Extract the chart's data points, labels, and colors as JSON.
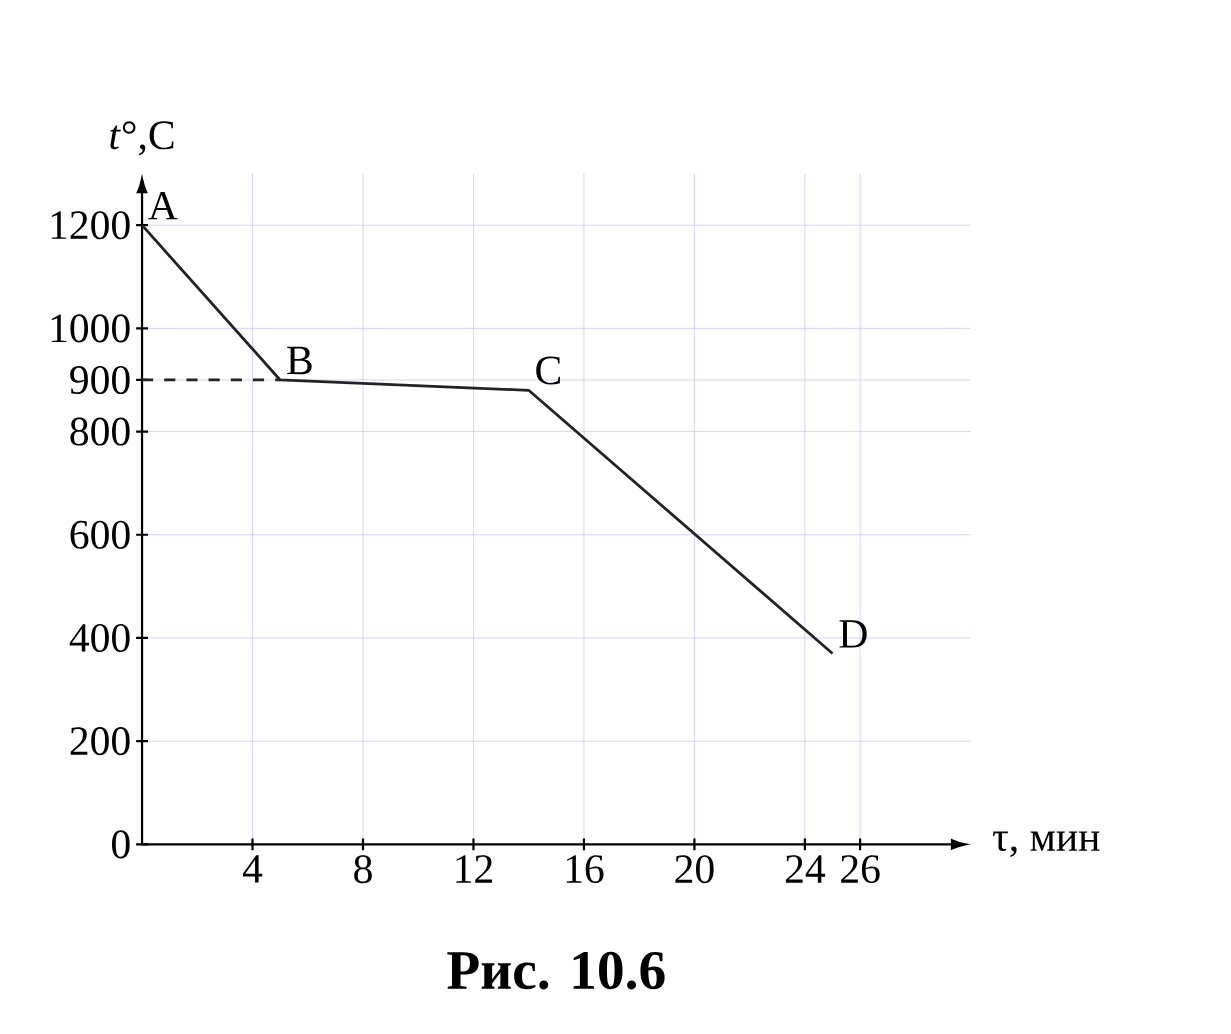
{
  "chart_data": {
    "type": "line",
    "xlabel": "τ, мин",
    "ylabel": "*t*°,C",
    "xlim": [
      0,
      30
    ],
    "ylim": [
      0,
      1300
    ],
    "xticks": [
      4,
      8,
      12,
      16,
      20,
      24,
      26
    ],
    "yticks": [
      0,
      200,
      400,
      600,
      800,
      900,
      1000,
      1200
    ],
    "grid": true,
    "marker": "none",
    "series": [
      {
        "x": [
          0,
          5,
          14,
          25
        ],
        "values": [
          1200,
          900,
          880,
          370
        ],
        "color": "#222222",
        "line_style": "solid"
      },
      {
        "x": [
          0,
          5
        ],
        "values": [
          900,
          900
        ],
        "color": "#222222",
        "line_style": "dashed"
      }
    ],
    "annotations": [
      {
        "text": "A",
        "x": 0,
        "y": 1200
      },
      {
        "text": "B",
        "x": 5,
        "y": 900
      },
      {
        "text": "C",
        "x": 14,
        "y": 880
      },
      {
        "text": "D",
        "x": 25,
        "y": 370
      },
      "**Рис. 10.6**"
    ]
  }
}
